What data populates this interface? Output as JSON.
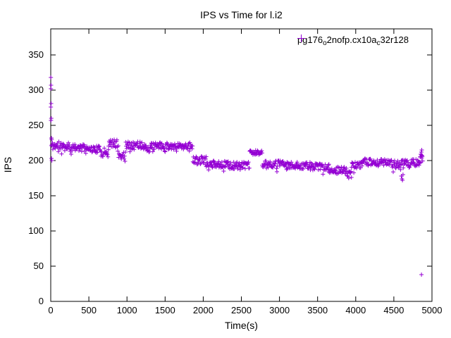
{
  "title": "IPS vs Time for l.i2",
  "axes": {
    "xlabel": "Time(s)",
    "ylabel": "IPS"
  },
  "legend": {
    "label_plain": "pg176_o2nofp.cx10a_c32r128",
    "rich": [
      {
        "text": "pg176"
      },
      {
        "text": "o",
        "sub": true
      },
      {
        "text": "2nofp.cx10a"
      },
      {
        "text": "c",
        "sub": true
      },
      {
        "text": "32r128"
      }
    ],
    "marker": "plus",
    "marker_color": "#9400D3"
  },
  "colors": {
    "marker": "#9400D3",
    "axis": "#000000",
    "background": "#FFFFFF",
    "text": "#000000"
  },
  "chart_data": {
    "type": "scatter",
    "title": "IPS vs Time for l.i2",
    "xlabel": "Time(s)",
    "ylabel": "IPS",
    "xlim": [
      0,
      5000
    ],
    "ylim": [
      0,
      387
    ],
    "xticks": [
      0,
      500,
      1000,
      1500,
      2000,
      2500,
      3000,
      3500,
      4000,
      4500,
      5000
    ],
    "yticks": [
      0,
      50,
      100,
      150,
      200,
      250,
      300,
      350
    ],
    "grid": false,
    "legend_position": "top-right-inside",
    "series": [
      {
        "name": "pg176_o2nofp.cx10a_c32r128",
        "marker": "plus",
        "color": "#9400D3",
        "sample_step_s": 6,
        "noise_seed": 11,
        "dip_chance": 0.08,
        "dip_max": 7,
        "band_segments": [
          [
            10,
            250,
            221,
            6
          ],
          [
            250,
            530,
            218,
            5
          ],
          [
            530,
            660,
            216,
            5
          ],
          [
            660,
            760,
            212,
            7
          ],
          [
            760,
            890,
            224,
            6
          ],
          [
            890,
            985,
            207,
            6
          ],
          [
            985,
            1240,
            222,
            5
          ],
          [
            1240,
            1320,
            217,
            5
          ],
          [
            1320,
            1865,
            221,
            5
          ],
          [
            1865,
            2040,
            200,
            6
          ],
          [
            2040,
            2340,
            195,
            5
          ],
          [
            2340,
            2610,
            193,
            5
          ],
          [
            2610,
            2775,
            211,
            4
          ],
          [
            2775,
            3100,
            195,
            5
          ],
          [
            3100,
            3420,
            193,
            5
          ],
          [
            3420,
            3650,
            191,
            5
          ],
          [
            3650,
            3890,
            186,
            5
          ],
          [
            3890,
            3945,
            181,
            4
          ],
          [
            3945,
            4085,
            193,
            5
          ],
          [
            4085,
            4480,
            198,
            5
          ],
          [
            4480,
            4640,
            195,
            6
          ],
          [
            4640,
            4830,
            197,
            5
          ],
          [
            4830,
            4882,
            203,
            6
          ]
        ],
        "outliers": [
          [
            2,
            318
          ],
          [
            5,
            307
          ],
          [
            3,
            302
          ],
          [
            6,
            281
          ],
          [
            2,
            276
          ],
          [
            7,
            260
          ],
          [
            4,
            257
          ],
          [
            9,
            232
          ],
          [
            12,
            230
          ],
          [
            10,
            203
          ],
          [
            15,
            200
          ],
          [
            4598,
            178
          ],
          [
            4606,
            174
          ],
          [
            4613,
            172
          ],
          [
            4620,
            180
          ],
          [
            4846,
            205
          ],
          [
            4853,
            209
          ],
          [
            4860,
            212
          ],
          [
            4866,
            215
          ],
          [
            4871,
            207
          ],
          [
            4862,
            38
          ]
        ]
      }
    ]
  }
}
